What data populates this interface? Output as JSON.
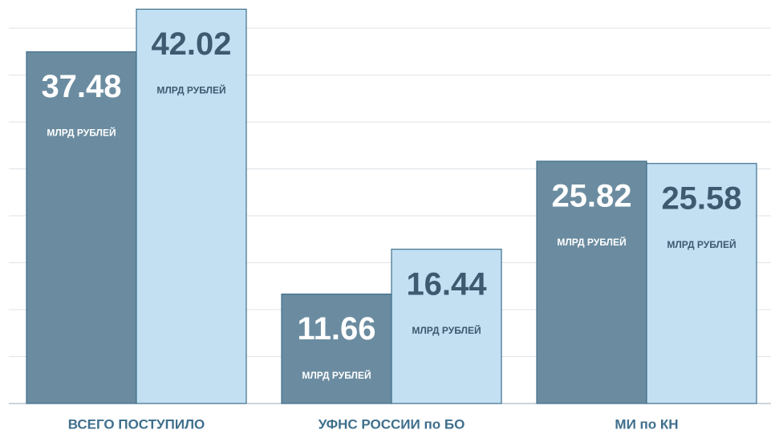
{
  "chart_data": {
    "type": "bar",
    "categories": [
      "ВСЕГО ПОСТУПИЛО",
      "УФНС РОССИИ по БО",
      "МИ по КН"
    ],
    "series": [
      {
        "color": "#6b8ca0",
        "values": [
          37.48,
          11.66,
          25.82
        ]
      },
      {
        "color": "#c2e0f2",
        "values": [
          42.02,
          16.44,
          25.58
        ]
      }
    ],
    "unit_label": "МЛРД РУБЛЕЙ",
    "ylim": [
      0,
      43
    ],
    "yticks": [
      0,
      5,
      10,
      15,
      20,
      25,
      30,
      35,
      40
    ],
    "grid": true
  }
}
